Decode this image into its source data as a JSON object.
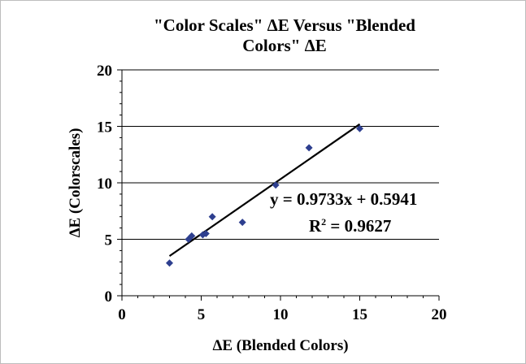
{
  "chart_data": {
    "type": "scatter",
    "title_line1": "\"Color Scales\" ΔE Versus \"Blended",
    "title_line2": "Colors\" ΔE",
    "xlabel": "ΔE (Blended Colors)",
    "ylabel": "ΔE (Colorscales)",
    "xlim": [
      0,
      20
    ],
    "ylim": [
      0,
      20
    ],
    "x_ticks": [
      "0",
      "5",
      "10",
      "15",
      "20"
    ],
    "y_ticks": [
      "0",
      "5",
      "10",
      "15",
      "20"
    ],
    "grid": "horizontal",
    "points": [
      {
        "x": 3.0,
        "y": 2.9
      },
      {
        "x": 4.2,
        "y": 5.0
      },
      {
        "x": 4.4,
        "y": 5.3
      },
      {
        "x": 5.1,
        "y": 5.4
      },
      {
        "x": 5.3,
        "y": 5.5
      },
      {
        "x": 5.7,
        "y": 7.0
      },
      {
        "x": 7.6,
        "y": 6.5
      },
      {
        "x": 9.7,
        "y": 9.8
      },
      {
        "x": 11.8,
        "y": 13.1
      },
      {
        "x": 15.0,
        "y": 14.8
      }
    ],
    "trendline": {
      "slope": 0.9733,
      "intercept": 0.5941,
      "x_range": [
        3.0,
        15.0
      ],
      "equation": "y = 0.9733x + 0.5941",
      "r2_label": "R",
      "r2_sup": "2",
      "r2_value": " = 0.9627"
    },
    "colors": {
      "marker": "#2e3f8f",
      "trendline": "#000000",
      "grid": "#000000",
      "axis": "#000000"
    }
  }
}
